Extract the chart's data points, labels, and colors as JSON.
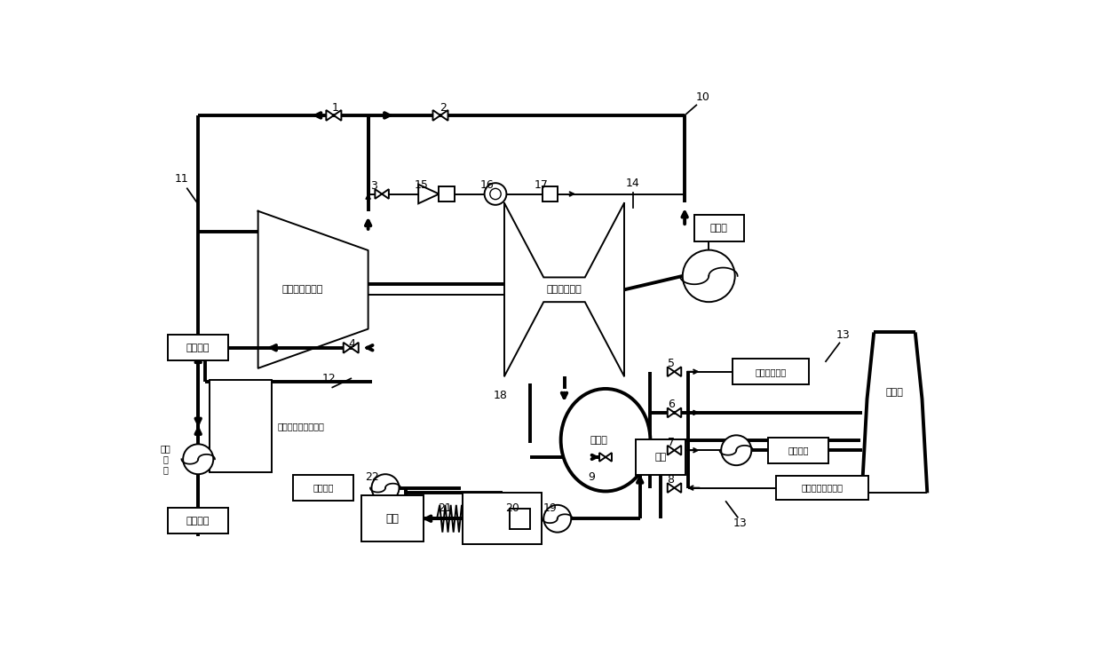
{
  "bg": "#ffffff",
  "lc": "#000000",
  "lw": 1.4,
  "tlw": 2.8,
  "labels": {
    "hp": "汽轮机高中压缸",
    "lp": "汽轮机低压缸",
    "cond": "凝汽器",
    "he": "供热首站热网加热器",
    "boiler": "锅炉",
    "hotwell": "热井",
    "ct": "冷水塔",
    "turb": "汽轮机",
    "circ": "循环水泵",
    "supply": "热网供水",
    "return": "热网回水",
    "drain": "疏水母管",
    "to_ct": "至临机冷水塔",
    "temp_pump": "临机循环水泵出口",
    "lcirc": "循环\n水\n泵"
  }
}
